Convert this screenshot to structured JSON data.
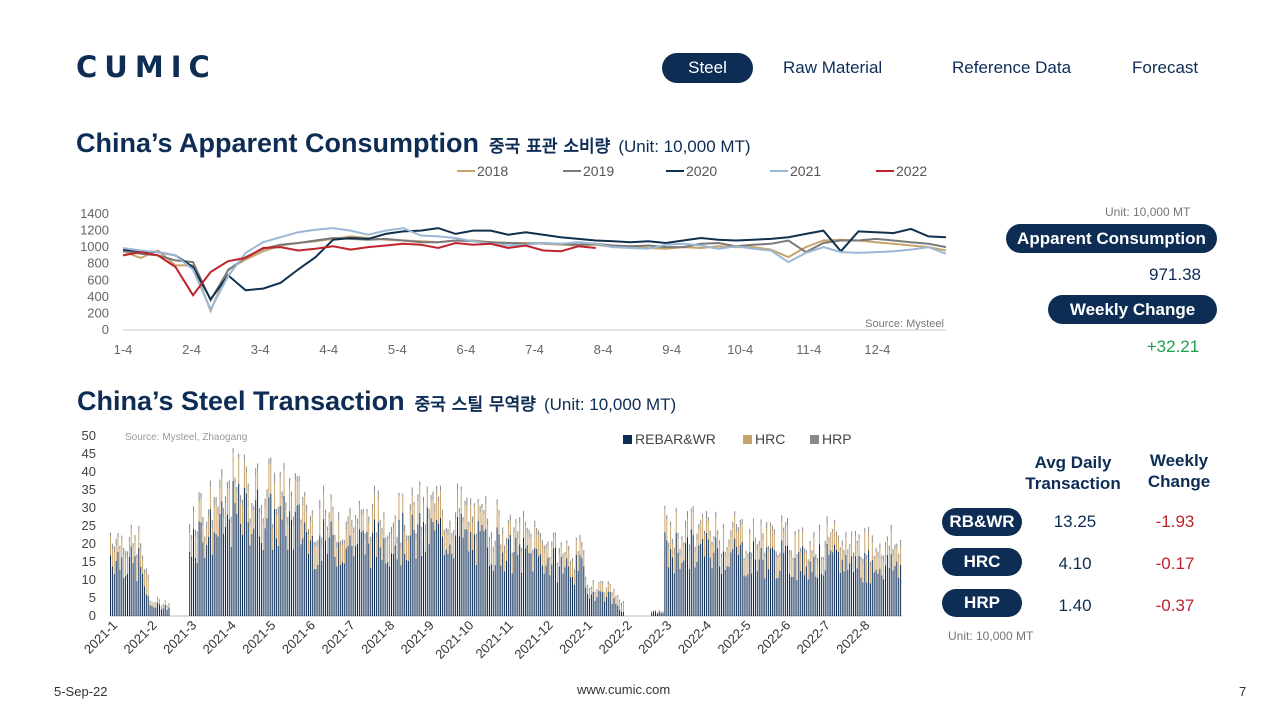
{
  "brand": "CUMIC",
  "nav": {
    "tabs": [
      {
        "label": "Steel",
        "active": true
      },
      {
        "label": "Raw Material",
        "active": false
      },
      {
        "label": "Reference Data",
        "active": false
      },
      {
        "label": "Forecast",
        "active": false
      }
    ]
  },
  "section1": {
    "title": "China’s Apparent Consumption",
    "title_kr": "중국 표관 소비량",
    "unit": "(Unit: 10,000 MT)"
  },
  "section2": {
    "title": "China’s Steel Transaction",
    "title_kr": "중국 스틸 무역량",
    "unit": "(Unit: 10,000 MT)"
  },
  "panel1": {
    "unit_note": "Unit: 10,000 MT",
    "consumption_label": "Apparent Consumption",
    "consumption_value": "971.38",
    "weekly_label": "Weekly Change",
    "weekly_value": "+32.21"
  },
  "panel2": {
    "col1": "Avg Daily Transaction",
    "col2": "Weekly Change",
    "rows": [
      {
        "label": "RB&WR",
        "avg": "13.25",
        "change": "-1.93"
      },
      {
        "label": "HRC",
        "avg": "4.10",
        "change": "-0.17"
      },
      {
        "label": "HRP",
        "avg": "1.40",
        "change": "-0.37"
      }
    ],
    "unit_note": "Unit: 10,000 MT"
  },
  "footer": {
    "date": "5-Sep-22",
    "website": "www.cumic.com",
    "page": "7"
  },
  "chart_data": [
    {
      "type": "line",
      "source": "Source: Mysteel",
      "x_tick_labels": [
        "1-4",
        "2-4",
        "3-4",
        "4-4",
        "5-4",
        "6-4",
        "7-4",
        "8-4",
        "9-4",
        "10-4",
        "11-4",
        "12-4"
      ],
      "y_ticks": [
        0,
        200,
        400,
        600,
        800,
        1000,
        1200,
        1400
      ],
      "ylim": [
        0,
        1400
      ],
      "legend_position": "top",
      "series": [
        {
          "name": "2018",
          "color": "#c7a46b",
          "values": [
            950,
            870,
            960,
            780,
            780,
            230,
            730,
            850,
            950,
            1020,
            1050,
            1070,
            1100,
            1130,
            1110,
            1090,
            1080,
            1070,
            1060,
            1080,
            1080,
            1060,
            1050,
            1050,
            1040,
            1030,
            1020,
            1030,
            1000,
            1010,
            990,
            980,
            1000,
            990,
            1010,
            1000,
            1000,
            970,
            880,
            1000,
            1080,
            1090,
            1080,
            1060,
            1040,
            1020,
            1000,
            960
          ]
        },
        {
          "name": "2019",
          "color": "#7a7a7a",
          "values": [
            960,
            920,
            900,
            840,
            820,
            360,
            720,
            880,
            980,
            1030,
            1050,
            1080,
            1110,
            1100,
            1090,
            1100,
            1080,
            1060,
            1060,
            1080,
            1070,
            1060,
            1050,
            1040,
            1050,
            1040,
            1030,
            1040,
            1020,
            1010,
            1020,
            1000,
            1000,
            1040,
            1050,
            1010,
            1030,
            1040,
            1080,
            940,
            1050,
            1080,
            1080,
            1100,
            1080,
            1060,
            1040,
            1000
          ]
        },
        {
          "name": "2020",
          "color": "#10304f",
          "values": [
            970,
            950,
            940,
            900,
            760,
            370,
            660,
            480,
            500,
            570,
            730,
            880,
            1090,
            1110,
            1100,
            1160,
            1190,
            1200,
            1230,
            1160,
            1200,
            1200,
            1150,
            1180,
            1150,
            1120,
            1100,
            1080,
            1070,
            1060,
            1070,
            1050,
            1080,
            1110,
            1090,
            1080,
            1090,
            1100,
            1120,
            1160,
            1200,
            950,
            1190,
            1180,
            1170,
            1220,
            1130,
            1120
          ]
        },
        {
          "name": "2021",
          "color": "#9bb8d6",
          "values": [
            990,
            960,
            940,
            900,
            730,
            250,
            650,
            930,
            1060,
            1120,
            1180,
            1210,
            1230,
            1200,
            1150,
            1200,
            1230,
            1140,
            1130,
            1110,
            1070,
            1040,
            1020,
            1030,
            1050,
            1040,
            1060,
            1040,
            1000,
            990,
            980,
            1030,
            1040,
            1020,
            980,
            1010,
            980,
            960,
            820,
            930,
            1000,
            940,
            930,
            940,
            950,
            970,
            1000,
            920
          ]
        },
        {
          "name": "2022",
          "color": "#c0232c",
          "values": [
            900,
            940,
            900,
            760,
            420,
            700,
            830,
            870,
            990,
            1000,
            960,
            980,
            1010,
            970,
            1000,
            1020,
            1040,
            1030,
            990,
            1050,
            1030,
            1040,
            990,
            1020,
            960,
            950,
            1010,
            990
          ]
        }
      ]
    },
    {
      "type": "bar",
      "stacked": true,
      "source": "Source: Mysteel, Zhaogang",
      "x_tick_labels": [
        "2021-1",
        "2021-2",
        "2021-3",
        "2021-4",
        "2021-5",
        "2021-6",
        "2021-7",
        "2021-8",
        "2021-9",
        "2021-10",
        "2021-11",
        "2021-12",
        "2022-1",
        "2022-2",
        "2022-3",
        "2022-4",
        "2022-5",
        "2022-6",
        "2022-7",
        "2022-8"
      ],
      "y_ticks": [
        0,
        5,
        10,
        15,
        20,
        25,
        30,
        35,
        40,
        45,
        50
      ],
      "ylim": [
        0,
        50
      ],
      "legend_position": "top",
      "series": [
        {
          "name": "REBAR&WR",
          "color": "#0d2d55"
        },
        {
          "name": "HRC",
          "color": "#c7a46b"
        },
        {
          "name": "HRP",
          "color": "#8a8a8a"
        }
      ],
      "monthly_rebar_level": [
        17,
        3,
        22,
        28,
        26,
        20,
        20,
        21,
        23,
        20,
        17,
        15,
        7,
        1,
        18,
        18,
        16,
        15,
        15,
        14
      ],
      "monthly_hrc_level": [
        5,
        1,
        6,
        7,
        7,
        6,
        6,
        6,
        6,
        6,
        5,
        4,
        2,
        0.3,
        5,
        5,
        5,
        5,
        5,
        5
      ],
      "monthly_hrp_level": [
        1.5,
        0.3,
        2,
        2,
        2,
        1.7,
        1.7,
        1.7,
        1.8,
        1.6,
        1.5,
        1.2,
        0.6,
        0.1,
        1.5,
        1.5,
        1.4,
        1.4,
        1.4,
        1.4
      ]
    }
  ]
}
